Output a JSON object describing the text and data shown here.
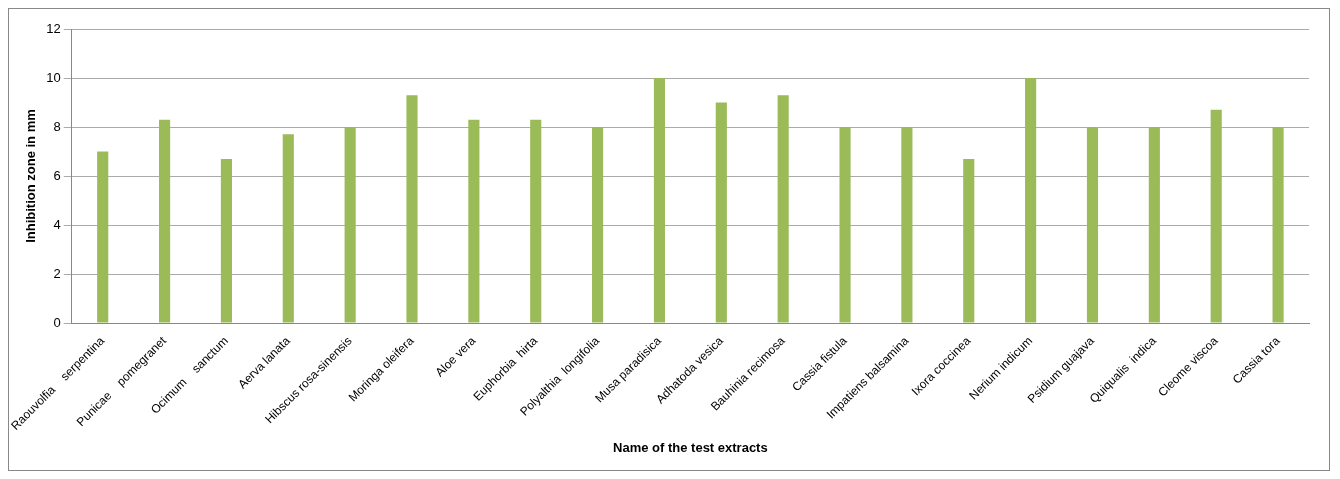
{
  "chart_data": {
    "type": "bar",
    "xlabel": "Name of the test extracts",
    "ylabel": "Inhibition zone in mm",
    "categories": [
      "Raouvolfia    serpentina",
      "Punicae    pomegranet",
      "Ocimum    sanctum",
      "Aerva lanata",
      "Hibscus rosa-sinensis",
      "Moringa oleifera",
      "Aloe vera",
      "Euphorbia  hirta",
      "Polyalthia  longifolia",
      "Musa paradisica",
      "Adhatoda vesica",
      "Bauhinia recimosa",
      "Cassia fistula",
      "Impatiens balsamina",
      "Ixora coccinea",
      "Nerium indicum",
      "Psidium guajava",
      "Quiqualis  indica",
      "Cleome viscoa",
      "Cassia tora"
    ],
    "values": [
      7,
      8.3,
      6.7,
      7.7,
      8,
      9.3,
      8.3,
      8.3,
      8,
      10,
      9,
      9.3,
      8,
      8,
      6.7,
      10,
      8,
      8,
      8.7,
      8
    ],
    "color": "#9bbb59",
    "ylim": [
      0,
      12
    ],
    "yticks": [
      0,
      2,
      4,
      6,
      8,
      10,
      12
    ],
    "grid": "y",
    "legend": false
  }
}
